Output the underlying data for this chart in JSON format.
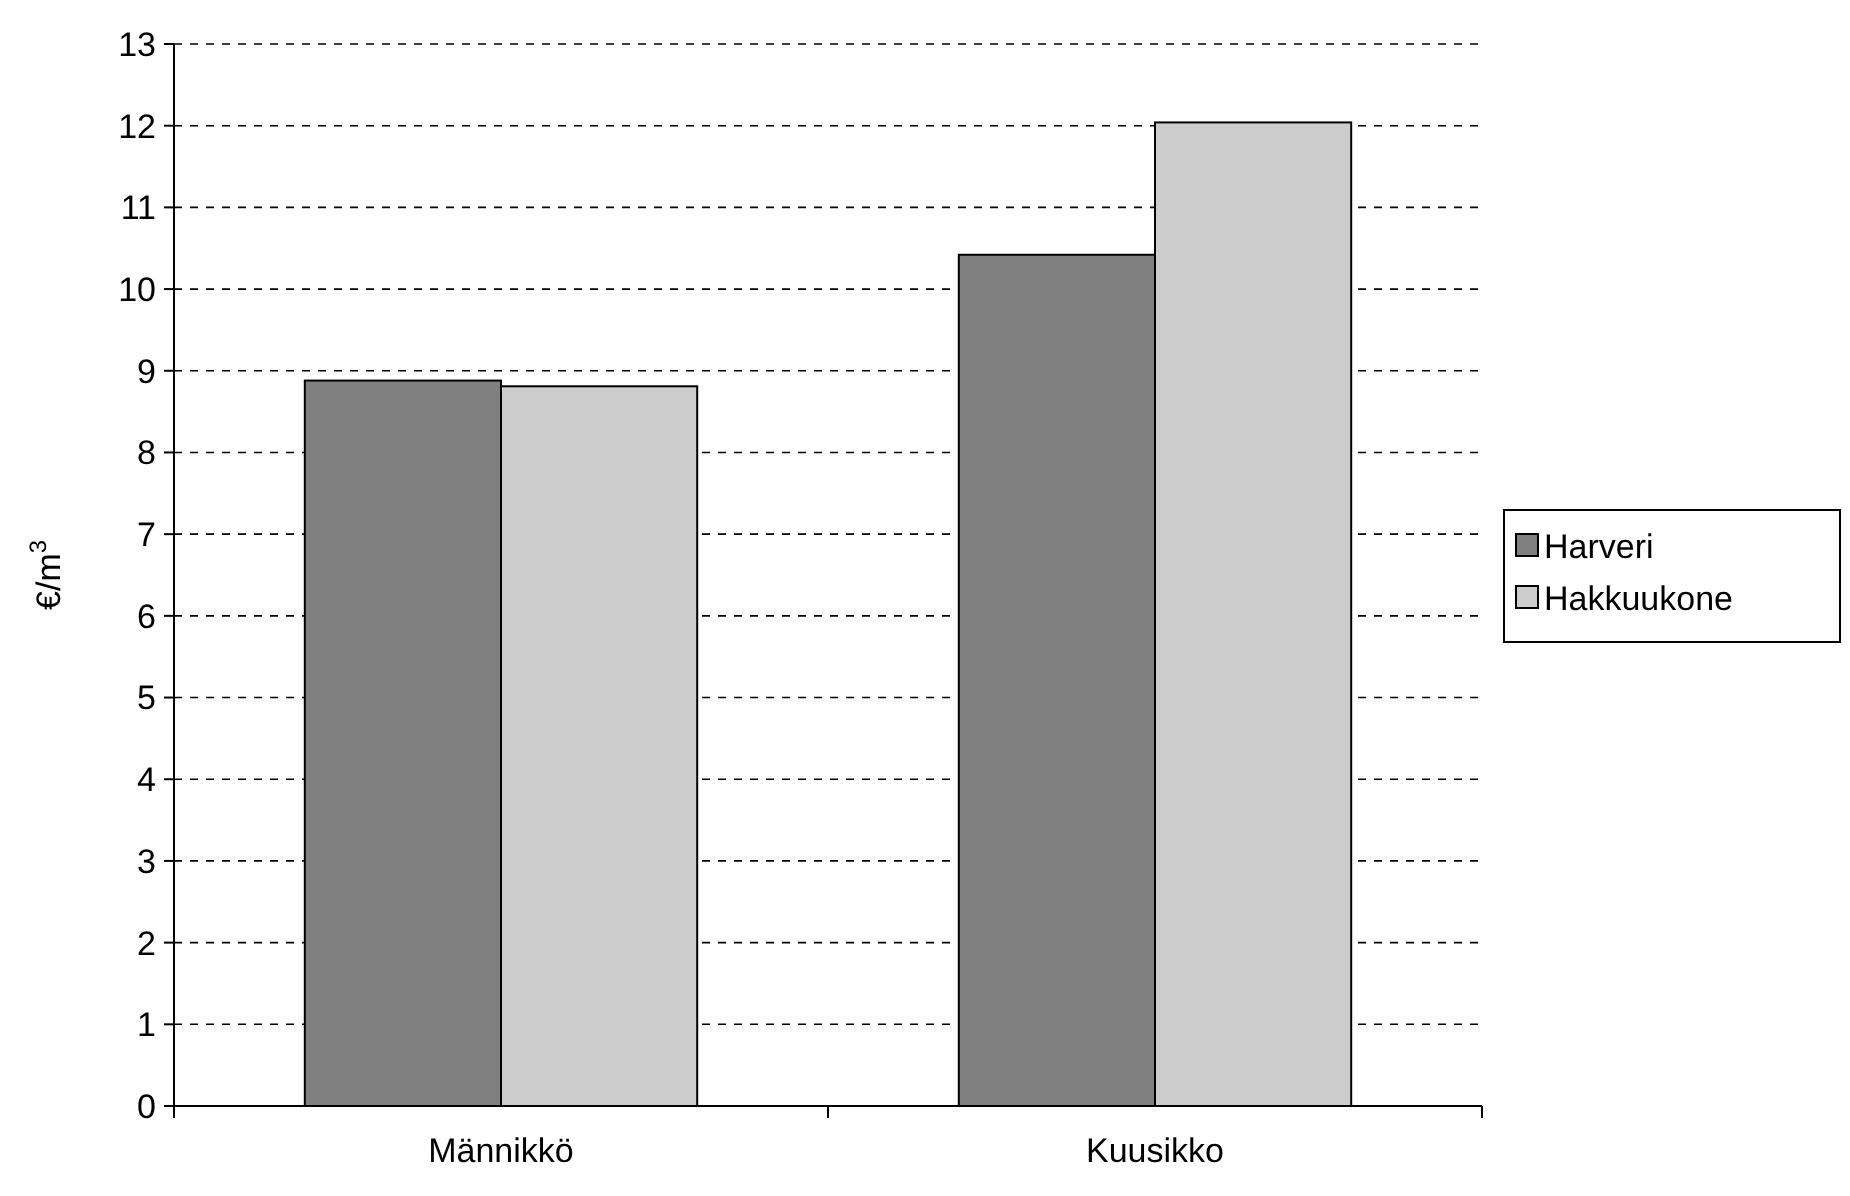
{
  "chart_data": {
    "type": "bar",
    "ylabel": "€/m$^{3}$",
    "categories": [
      "Männikkö",
      "Kuusikko"
    ],
    "series": [
      {
        "name": "Harveri",
        "color": "#808080",
        "values": [
          8.88,
          10.42
        ]
      },
      {
        "name": "Hakkuukone",
        "color": "#cccccc",
        "values": [
          8.81,
          12.04
        ]
      }
    ],
    "ylim": [
      0,
      13
    ],
    "yticks": [
      0,
      1,
      2,
      3,
      4,
      5,
      6,
      7,
      8,
      9,
      10,
      11,
      12,
      13
    ],
    "grid": "y",
    "legend": "right"
  }
}
